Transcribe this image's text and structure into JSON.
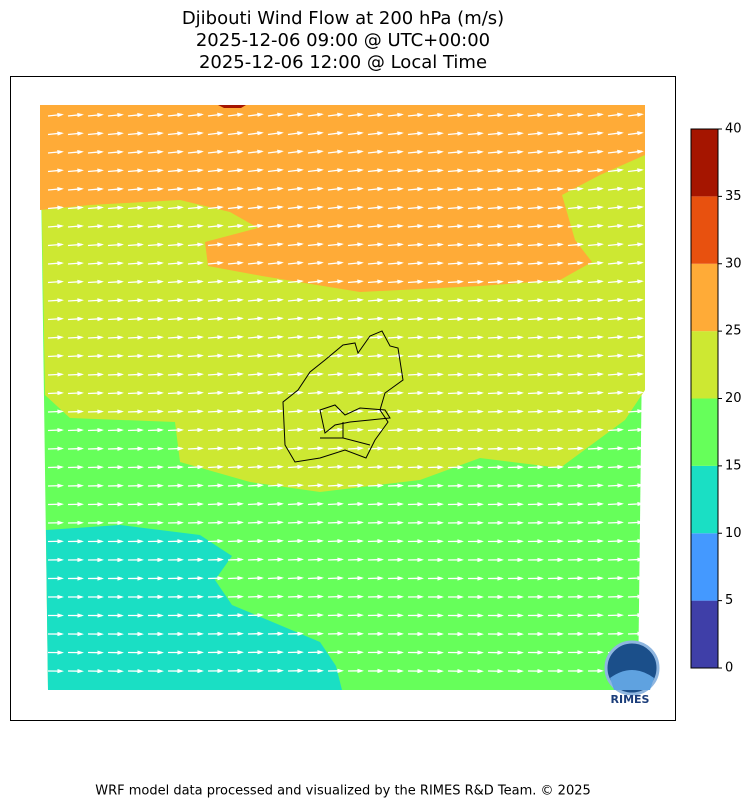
{
  "title_lines": [
    "Djibouti Wind Flow at 200 hPa (m/s)",
    "2025-12-06 09:00 @ UTC+00:00",
    "2025-12-06 12:00 @ Local Time"
  ],
  "colorbar": {
    "ticks": [
      0,
      5,
      10,
      15,
      20,
      25,
      30,
      35,
      40
    ],
    "colors": [
      "#3f3fa8",
      "#4499ff",
      "#1adfc4",
      "#66ff5a",
      "#cde832",
      "#ffab37",
      "#e8510f",
      "#a51500"
    ]
  },
  "logo_text": "RIMES",
  "footer": "WRF model data processed and visualized by the RIMES R&D Team. © 2025"
}
